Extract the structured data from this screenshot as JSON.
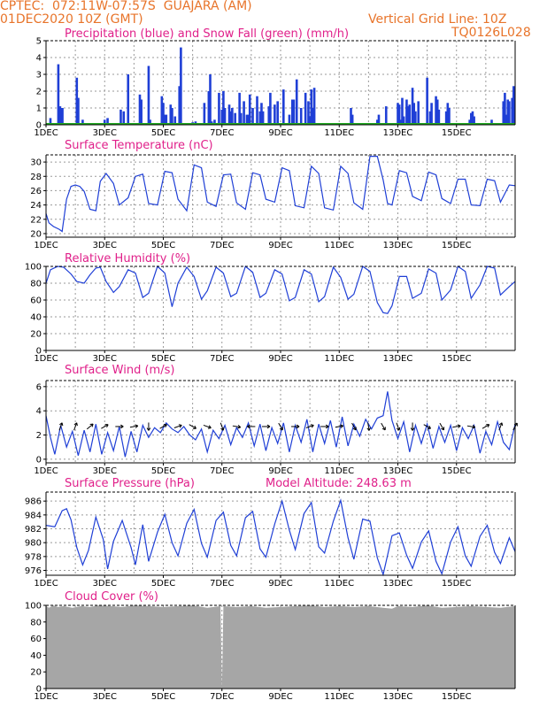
{
  "colors": {
    "header": "#e8742a",
    "title": "#e0208a",
    "series": "#1f3fd6",
    "snow": "#22aa22",
    "cloud": "#a6a6a6",
    "grid": "#9a9a9a"
  },
  "header": {
    "line1_left": "CPTEC:  072:11W-07:57S  GUAJARA (AM)",
    "line2_left": "01DEC2020 10Z (GMT)",
    "line2_right": "Vertical Grid Line: 10Z",
    "line3_right": "TQ0126L028"
  },
  "chart_data": [
    {
      "type": "bar",
      "title": "Precipitation (blue) and Snow Fall (green) (mm/h)",
      "x_ticks": [
        "1DEC",
        "3DEC",
        "5DEC",
        "7DEC",
        "9DEC",
        "11DEC",
        "13DEC",
        "15DEC"
      ],
      "ylim": [
        0,
        5
      ],
      "y_ticks": [
        0,
        1,
        2,
        3,
        4,
        5
      ],
      "series": [
        {
          "name": "Precipitation",
          "x": [
            0.15,
            0.42,
            0.48,
            0.52,
            0.56,
            1.05,
            1.1,
            1.25,
            2.0,
            2.1,
            2.55,
            2.65,
            2.8,
            3.2,
            3.25,
            3.5,
            3.55,
            3.95,
            4.0,
            4.05,
            4.1,
            4.25,
            4.3,
            4.4,
            4.55,
            4.6,
            4.75,
            4.95,
            5.0,
            5.1,
            5.4,
            5.55,
            5.6,
            5.65,
            5.75,
            5.9,
            6.0,
            6.05,
            6.1,
            6.25,
            6.3,
            6.35,
            6.45,
            6.6,
            6.65,
            6.75,
            6.85,
            6.9,
            6.95,
            7.05,
            7.2,
            7.3,
            7.35,
            7.4,
            7.6,
            7.65,
            7.8,
            7.9,
            8.1,
            8.3,
            8.4,
            8.45,
            8.55,
            8.7,
            8.85,
            8.95,
            9.0,
            9.05,
            9.1,
            9.15,
            9.3,
            10.4,
            10.45,
            11.3,
            11.35,
            11.6,
            12.0,
            12.05,
            12.1,
            12.15,
            12.2,
            12.3,
            12.35,
            12.4,
            12.5,
            12.55,
            12.6,
            12.7,
            13.0,
            13.1,
            13.15,
            13.3,
            13.35,
            13.4,
            13.65,
            13.7,
            13.75,
            14.45,
            14.5,
            14.55,
            14.6,
            15.2,
            15.6,
            15.65,
            15.7,
            15.75,
            15.8,
            15.9,
            15.95
          ],
          "values": [
            0.4,
            3.6,
            1.1,
            1.0,
            1.0,
            2.8,
            1.6,
            0.3,
            0.3,
            0.4,
            0.9,
            0.8,
            3.0,
            1.8,
            1.5,
            3.5,
            0.3,
            1.7,
            1.3,
            0.6,
            0.6,
            1.2,
            1.0,
            0.5,
            2.3,
            4.6,
            0.1,
            0.1,
            0.15,
            0.2,
            1.3,
            2.0,
            3.0,
            0.2,
            0.3,
            1.9,
            0.9,
            2.0,
            1.0,
            1.2,
            0.8,
            1.0,
            0.7,
            1.9,
            0.7,
            1.4,
            0.6,
            0.6,
            1.8,
            1.0,
            1.7,
            0.8,
            1.3,
            0.8,
            1.1,
            1.9,
            1.2,
            1.4,
            2.1,
            0.6,
            1.5,
            1.5,
            2.7,
            1.0,
            1.9,
            1.4,
            0.5,
            2.1,
            1.0,
            2.2,
            0.1,
            1.0,
            0.6,
            0.3,
            0.6,
            1.1,
            1.3,
            1.2,
            0.3,
            1.6,
            0.5,
            1.5,
            1.1,
            1.2,
            2.2,
            1.3,
            0.8,
            1.4,
            2.8,
            0.8,
            1.3,
            1.7,
            1.5,
            0.9,
            0.8,
            1.3,
            1.0,
            0.3,
            0.7,
            0.8,
            0.5,
            0.3,
            1.4,
            1.9,
            0.6,
            1.5,
            1.4,
            1.6,
            2.3
          ]
        },
        {
          "name": "Snow Fall",
          "x": [
            0,
            16
          ],
          "values": [
            0,
            0
          ]
        }
      ]
    },
    {
      "type": "line",
      "title": "Surface Temperature (nC)",
      "x_ticks": [
        "1DEC",
        "3DEC",
        "5DEC",
        "7DEC",
        "9DEC",
        "11DEC",
        "13DEC",
        "15DEC"
      ],
      "ylim": [
        19.5,
        31
      ],
      "y_ticks": [
        20,
        22,
        24,
        26,
        28,
        30
      ],
      "x": [
        0,
        0.1,
        0.25,
        0.45,
        0.55,
        0.7,
        0.85,
        1.0,
        1.15,
        1.3,
        1.5,
        1.7,
        1.85,
        2.05,
        2.3,
        2.5,
        2.8,
        3.05,
        3.3,
        3.5,
        3.8,
        4.05,
        4.3,
        4.5,
        4.8,
        5.05,
        5.3,
        5.5,
        5.8,
        6.05,
        6.3,
        6.5,
        6.8,
        7.05,
        7.3,
        7.5,
        7.8,
        8.05,
        8.3,
        8.5,
        8.8,
        9.05,
        9.3,
        9.5,
        9.8,
        10.05,
        10.3,
        10.5,
        10.8,
        11.05,
        11.3,
        11.5,
        11.65,
        11.8,
        12.05,
        12.3,
        12.5,
        12.8,
        13.05,
        13.3,
        13.5,
        13.8,
        14.05,
        14.3,
        14.5,
        14.8,
        15.05,
        15.3,
        15.5,
        15.8,
        16.0
      ],
      "values": [
        22.8,
        21.5,
        21.0,
        20.6,
        20.3,
        24.8,
        26.6,
        26.8,
        26.6,
        25.9,
        23.4,
        23.2,
        27.3,
        28.4,
        27.0,
        24.0,
        25.0,
        28.0,
        28.3,
        24.2,
        24.0,
        28.7,
        28.5,
        24.8,
        23.2,
        29.6,
        29.2,
        24.4,
        23.8,
        28.2,
        28.3,
        24.3,
        23.4,
        28.5,
        28.2,
        24.8,
        24.4,
        29.2,
        28.8,
        23.9,
        23.6,
        29.4,
        28.4,
        23.6,
        23.3,
        29.4,
        28.4,
        24.3,
        23.4,
        30.8,
        30.8,
        27.5,
        24.2,
        24.0,
        28.8,
        28.5,
        25.2,
        24.6,
        28.6,
        28.2,
        24.9,
        24.2,
        27.6,
        27.6,
        24.0,
        23.9,
        27.6,
        27.4,
        24.4,
        26.8,
        26.7
      ]
    },
    {
      "type": "line",
      "title": "Relative Humidity (%)",
      "x_ticks": [
        "1DEC",
        "3DEC",
        "5DEC",
        "7DEC",
        "9DEC",
        "11DEC",
        "13DEC",
        "15DEC"
      ],
      "ylim": [
        0,
        100
      ],
      "y_ticks": [
        0,
        20,
        40,
        60,
        80,
        100
      ],
      "x": [
        0,
        0.15,
        0.4,
        0.6,
        0.85,
        1.05,
        1.3,
        1.5,
        1.7,
        1.85,
        2.05,
        2.3,
        2.5,
        2.8,
        3.05,
        3.3,
        3.5,
        3.8,
        4.05,
        4.3,
        4.5,
        4.8,
        5.05,
        5.3,
        5.5,
        5.8,
        6.05,
        6.3,
        6.5,
        6.8,
        7.05,
        7.3,
        7.5,
        7.8,
        8.05,
        8.3,
        8.5,
        8.8,
        9.05,
        9.3,
        9.5,
        9.8,
        10.05,
        10.3,
        10.5,
        10.8,
        11.05,
        11.3,
        11.5,
        11.65,
        11.8,
        12.05,
        12.3,
        12.5,
        12.8,
        13.05,
        13.3,
        13.5,
        13.8,
        14.05,
        14.3,
        14.5,
        14.8,
        15.05,
        15.3,
        15.5,
        15.8,
        16.0
      ],
      "values": [
        80,
        96,
        100,
        99,
        91,
        82,
        80,
        90,
        98,
        99,
        82,
        69,
        76,
        96,
        92,
        63,
        68,
        100,
        92,
        52,
        80,
        99,
        88,
        61,
        71,
        99,
        92,
        64,
        68,
        100,
        93,
        63,
        68,
        96,
        91,
        59,
        63,
        96,
        91,
        58,
        64,
        99,
        87,
        61,
        67,
        100,
        94,
        57,
        45,
        44,
        53,
        88,
        88,
        62,
        68,
        97,
        92,
        60,
        72,
        100,
        94,
        62,
        78,
        100,
        98,
        66,
        76,
        82
      ]
    },
    {
      "type": "line",
      "title": "Surface Wind (m/s)",
      "x_ticks": [
        "1DEC",
        "3DEC",
        "5DEC",
        "7DEC",
        "9DEC",
        "11DEC",
        "13DEC",
        "15DEC"
      ],
      "ylim": [
        -0.3,
        6.5
      ],
      "y_ticks": [
        0,
        2,
        4,
        6
      ],
      "x": [
        0,
        0.15,
        0.3,
        0.5,
        0.7,
        0.9,
        1.1,
        1.3,
        1.5,
        1.7,
        1.9,
        2.1,
        2.3,
        2.5,
        2.7,
        2.9,
        3.1,
        3.3,
        3.5,
        3.7,
        3.9,
        4.1,
        4.3,
        4.5,
        4.7,
        4.9,
        5.1,
        5.3,
        5.5,
        5.7,
        5.9,
        6.1,
        6.3,
        6.5,
        6.7,
        6.9,
        7.1,
        7.3,
        7.5,
        7.7,
        7.9,
        8.1,
        8.3,
        8.5,
        8.7,
        8.9,
        9.1,
        9.3,
        9.5,
        9.7,
        9.9,
        10.1,
        10.3,
        10.5,
        10.7,
        10.9,
        11.1,
        11.3,
        11.5,
        11.65,
        11.8,
        12.0,
        12.2,
        12.4,
        12.6,
        12.8,
        13.0,
        13.2,
        13.4,
        13.6,
        13.8,
        14.0,
        14.2,
        14.4,
        14.6,
        14.8,
        15.0,
        15.2,
        15.4,
        15.6,
        15.8,
        16.0
      ],
      "values": [
        3.6,
        1.8,
        0.4,
        2.8,
        1.0,
        2.3,
        0.3,
        2.4,
        0.6,
        2.9,
        0.4,
        2.2,
        0.7,
        2.7,
        0.2,
        2.3,
        0.6,
        2.8,
        1.8,
        2.6,
        2.2,
        3.0,
        2.5,
        2.2,
        2.7,
        2.0,
        1.6,
        2.5,
        0.6,
        2.4,
        1.7,
        2.8,
        1.2,
        2.6,
        1.8,
        3.0,
        1.1,
        2.9,
        0.7,
        2.6,
        1.3,
        3.0,
        0.6,
        2.8,
        1.4,
        3.3,
        0.6,
        2.9,
        1.3,
        3.2,
        1.0,
        3.5,
        1.1,
        2.9,
        1.9,
        3.3,
        2.5,
        3.4,
        3.6,
        5.6,
        3.2,
        1.7,
        3.1,
        0.6,
        2.8,
        1.3,
        2.9,
        0.9,
        2.7,
        1.4,
        2.8,
        0.7,
        2.6,
        1.7,
        2.8,
        0.5,
        2.3,
        1.2,
        3.1,
        1.4,
        0.8,
        2.9
      ],
      "arrow_x": [
        0.5,
        1.0,
        1.5,
        2.0,
        2.5,
        3.0,
        3.5,
        4.0,
        4.5,
        5.0,
        5.5,
        6.0,
        6.5,
        7.0,
        7.5,
        8.0,
        8.5,
        9.0,
        9.5,
        10.0,
        10.5,
        11.0,
        11.5,
        12.0,
        12.5,
        13.0,
        13.5,
        14.0,
        14.5,
        15.0,
        15.5,
        16.0
      ],
      "arrow_dir_deg": [
        -70,
        -70,
        -40,
        -30,
        0,
        -10,
        90,
        -30,
        -20,
        30,
        20,
        70,
        10,
        -180,
        0,
        60,
        0,
        -20,
        0,
        -10,
        60,
        80,
        60,
        70,
        90,
        30,
        60,
        -10,
        10,
        -30,
        -70,
        -60
      ]
    },
    {
      "type": "line",
      "title": "Surface Pressure (hPa)",
      "subtitle": "Model Altitude: 248.63 m",
      "x_ticks": [
        "1DEC",
        "3DEC",
        "5DEC",
        "7DEC",
        "9DEC",
        "11DEC",
        "13DEC",
        "15DEC"
      ],
      "ylim": [
        975.3,
        987.3
      ],
      "y_ticks": [
        976,
        978,
        980,
        982,
        984,
        986
      ],
      "x": [
        0,
        0.3,
        0.55,
        0.7,
        0.85,
        1.05,
        1.25,
        1.45,
        1.7,
        1.95,
        2.1,
        2.3,
        2.6,
        2.9,
        3.05,
        3.3,
        3.5,
        3.8,
        4.05,
        4.3,
        4.5,
        4.8,
        5.05,
        5.3,
        5.5,
        5.8,
        6.05,
        6.3,
        6.5,
        6.8,
        7.05,
        7.3,
        7.5,
        7.8,
        8.05,
        8.3,
        8.5,
        8.8,
        9.05,
        9.3,
        9.5,
        9.8,
        10.05,
        10.3,
        10.5,
        10.8,
        11.05,
        11.3,
        11.5,
        11.8,
        12.05,
        12.3,
        12.5,
        12.8,
        13.05,
        13.3,
        13.5,
        13.8,
        14.05,
        14.3,
        14.5,
        14.8,
        15.05,
        15.3,
        15.5,
        15.8,
        16.0
      ],
      "values": [
        982.5,
        982.3,
        984.6,
        984.9,
        983.3,
        979.3,
        976.8,
        978.9,
        983.7,
        980.5,
        976.2,
        980.2,
        983.2,
        979.3,
        976.8,
        982.6,
        977.3,
        981.5,
        984.1,
        980.0,
        978.1,
        982.8,
        984.8,
        979.9,
        977.9,
        983.2,
        984.4,
        979.6,
        978.1,
        983.6,
        984.5,
        979.1,
        977.9,
        982.7,
        986.0,
        981.8,
        979.0,
        984.2,
        985.8,
        979.4,
        978.5,
        983.1,
        986.1,
        980.7,
        977.6,
        983.4,
        983.1,
        977.8,
        975.4,
        981.0,
        981.4,
        978.2,
        976.3,
        980.1,
        981.7,
        977.3,
        975.5,
        980.1,
        982.3,
        978.1,
        976.6,
        980.9,
        982.5,
        978.6,
        977.0,
        980.7,
        978.7
      ]
    },
    {
      "type": "area",
      "title": "Cloud Cover (%)",
      "x_ticks": [
        "1DEC",
        "3DEC",
        "5DEC",
        "7DEC",
        "9DEC",
        "11DEC",
        "13DEC",
        "15DEC"
      ],
      "ylim": [
        0,
        100
      ],
      "y_ticks": [
        0,
        20,
        40,
        60,
        80,
        100
      ],
      "x": [
        0,
        0.1,
        0.25,
        0.4,
        0.6,
        0.9,
        1.2,
        1.5,
        1.8,
        2.2,
        2.6,
        3.0,
        3.5,
        4.0,
        4.5,
        5.0,
        5.5,
        5.95,
        6.0,
        6.05,
        6.5,
        7.0,
        7.5,
        8.0,
        8.5,
        9.0,
        9.5,
        10.0,
        10.5,
        11.0,
        11.5,
        11.8,
        12.0,
        12.5,
        13.0,
        13.5,
        14.0,
        14.5,
        15.0,
        15.5,
        16.0
      ],
      "values": [
        99,
        97,
        100,
        98,
        99,
        97,
        99,
        98,
        100,
        99,
        98,
        100,
        99,
        98,
        99,
        100,
        97,
        99,
        0,
        99,
        98,
        99,
        97,
        98,
        99,
        100,
        98,
        99,
        98,
        99,
        97,
        96,
        99,
        98,
        100,
        97,
        98,
        99,
        98,
        97,
        99
      ]
    }
  ]
}
